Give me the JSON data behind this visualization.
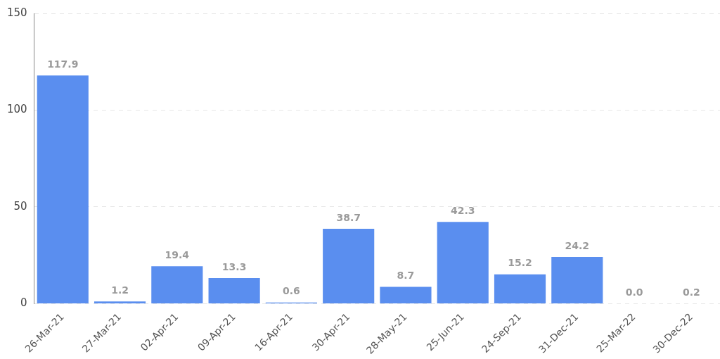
{
  "chart_data": {
    "type": "bar",
    "categories": [
      "26-Mar-21",
      "27-Mar-21",
      "02-Apr-21",
      "09-Apr-21",
      "16-Apr-21",
      "30-Apr-21",
      "28-May-21",
      "25-Jun-21",
      "24-Sep-21",
      "31-Dec-21",
      "25-Mar-22",
      "30-Dec-22"
    ],
    "values": [
      117.9,
      1.2,
      19.4,
      13.3,
      0.6,
      38.7,
      8.7,
      42.3,
      15.2,
      24.2,
      0.0,
      0.2
    ],
    "value_labels": [
      "117.9",
      "1.2",
      "19.4",
      "13.3",
      "0.6",
      "38.7",
      "8.7",
      "42.3",
      "15.2",
      "24.2",
      "0.0",
      "0.2"
    ],
    "color": "#5a8eef",
    "ylim": [
      0,
      150
    ],
    "yticks": [
      0,
      50,
      100,
      150
    ],
    "grid": "y",
    "legend": false
  }
}
